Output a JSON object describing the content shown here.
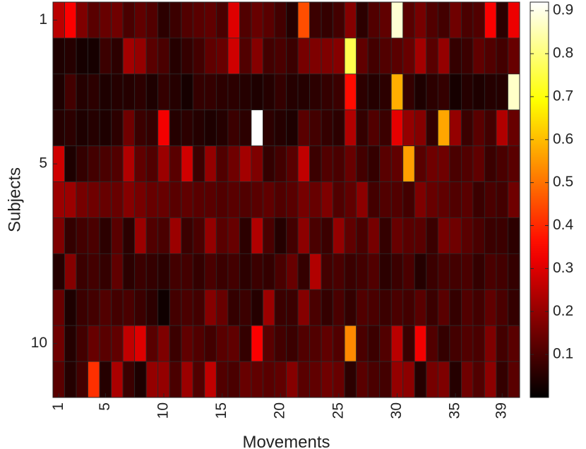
{
  "chart_data": {
    "type": "heatmap",
    "title": "",
    "xlabel": "Movements",
    "ylabel": "Subjects",
    "x_tick_values": [
      1,
      5,
      10,
      15,
      20,
      25,
      30,
      35,
      39
    ],
    "y_tick_values": [
      1,
      5,
      10
    ],
    "x_range": [
      1,
      40
    ],
    "y_range": [
      1,
      11
    ],
    "colormap": "hot",
    "color_range": [
      0,
      0.92
    ],
    "colorbar_ticks": [
      0.1,
      0.2,
      0.3,
      0.4,
      0.5,
      0.6,
      0.7,
      0.8,
      0.9
    ],
    "grid": true,
    "values": [
      [
        0.25,
        0.34,
        0.17,
        0.12,
        0.14,
        0.15,
        0.1,
        0.13,
        0.11,
        0.06,
        0.08,
        0.11,
        0.12,
        0.13,
        0.1,
        0.3,
        0.11,
        0.14,
        0.12,
        0.09,
        0.05,
        0.45,
        0.08,
        0.07,
        0.09,
        0.18,
        0.06,
        0.11,
        0.13,
        0.88,
        0.12,
        0.16,
        0.11,
        0.09,
        0.15,
        0.1,
        0.11,
        0.34,
        0.06,
        0.32
      ],
      [
        0.04,
        0.05,
        0.03,
        0.03,
        0.08,
        0.06,
        0.22,
        0.2,
        0.12,
        0.1,
        0.05,
        0.07,
        0.09,
        0.13,
        0.14,
        0.28,
        0.11,
        0.18,
        0.09,
        0.1,
        0.08,
        0.16,
        0.17,
        0.17,
        0.18,
        0.76,
        0.13,
        0.09,
        0.11,
        0.12,
        0.14,
        0.22,
        0.12,
        0.2,
        0.07,
        0.08,
        0.13,
        0.11,
        0.09,
        0.14
      ],
      [
        0.04,
        0.09,
        0.05,
        0.06,
        0.04,
        0.05,
        0.05,
        0.06,
        0.04,
        0.07,
        0.05,
        0.03,
        0.07,
        0.07,
        0.06,
        0.06,
        0.05,
        0.04,
        0.05,
        0.07,
        0.05,
        0.05,
        0.06,
        0.07,
        0.08,
        0.36,
        0.06,
        0.05,
        0.06,
        0.58,
        0.07,
        0.04,
        0.06,
        0.07,
        0.03,
        0.05,
        0.04,
        0.05,
        0.05,
        0.87
      ],
      [
        0.05,
        0.06,
        0.04,
        0.05,
        0.04,
        0.06,
        0.15,
        0.08,
        0.07,
        0.33,
        0.05,
        0.06,
        0.05,
        0.04,
        0.05,
        0.08,
        0.06,
        0.92,
        0.06,
        0.05,
        0.04,
        0.12,
        0.09,
        0.07,
        0.06,
        0.24,
        0.07,
        0.11,
        0.08,
        0.31,
        0.2,
        0.18,
        0.07,
        0.57,
        0.2,
        0.08,
        0.12,
        0.09,
        0.24,
        0.14
      ],
      [
        0.28,
        0.04,
        0.07,
        0.09,
        0.1,
        0.11,
        0.24,
        0.13,
        0.11,
        0.21,
        0.12,
        0.28,
        0.08,
        0.2,
        0.11,
        0.15,
        0.22,
        0.17,
        0.07,
        0.09,
        0.12,
        0.26,
        0.08,
        0.11,
        0.1,
        0.14,
        0.09,
        0.07,
        0.12,
        0.13,
        0.56,
        0.12,
        0.15,
        0.15,
        0.1,
        0.11,
        0.13,
        0.08,
        0.1,
        0.12
      ],
      [
        0.21,
        0.21,
        0.16,
        0.15,
        0.14,
        0.14,
        0.18,
        0.16,
        0.14,
        0.14,
        0.12,
        0.13,
        0.12,
        0.12,
        0.11,
        0.12,
        0.11,
        0.12,
        0.13,
        0.11,
        0.12,
        0.16,
        0.14,
        0.17,
        0.11,
        0.13,
        0.19,
        0.09,
        0.11,
        0.11,
        0.09,
        0.17,
        0.14,
        0.13,
        0.11,
        0.12,
        0.08,
        0.1,
        0.09,
        0.15
      ],
      [
        0.17,
        0.07,
        0.09,
        0.1,
        0.06,
        0.12,
        0.06,
        0.21,
        0.11,
        0.1,
        0.21,
        0.08,
        0.1,
        0.2,
        0.12,
        0.14,
        0.06,
        0.24,
        0.1,
        0.05,
        0.09,
        0.19,
        0.1,
        0.08,
        0.2,
        0.13,
        0.1,
        0.16,
        0.07,
        0.14,
        0.12,
        0.12,
        0.08,
        0.16,
        0.15,
        0.12,
        0.1,
        0.08,
        0.08,
        0.06
      ],
      [
        0.05,
        0.18,
        0.08,
        0.09,
        0.07,
        0.13,
        0.06,
        0.08,
        0.07,
        0.06,
        0.09,
        0.09,
        0.07,
        0.1,
        0.08,
        0.09,
        0.06,
        0.08,
        0.07,
        0.1,
        0.14,
        0.07,
        0.24,
        0.09,
        0.1,
        0.08,
        0.09,
        0.11,
        0.06,
        0.08,
        0.1,
        0.05,
        0.08,
        0.1,
        0.09,
        0.1,
        0.07,
        0.1,
        0.09,
        0.07
      ],
      [
        0.14,
        0.04,
        0.08,
        0.09,
        0.11,
        0.09,
        0.1,
        0.08,
        0.06,
        0.02,
        0.09,
        0.1,
        0.09,
        0.18,
        0.14,
        0.07,
        0.08,
        0.05,
        0.21,
        0.08,
        0.08,
        0.18,
        0.1,
        0.07,
        0.1,
        0.07,
        0.11,
        0.1,
        0.08,
        0.1,
        0.09,
        0.12,
        0.08,
        0.12,
        0.07,
        0.11,
        0.09,
        0.13,
        0.1,
        0.07
      ],
      [
        0.15,
        0.05,
        0.09,
        0.14,
        0.12,
        0.13,
        0.26,
        0.3,
        0.12,
        0.17,
        0.08,
        0.13,
        0.11,
        0.09,
        0.12,
        0.13,
        0.07,
        0.34,
        0.12,
        0.09,
        0.08,
        0.11,
        0.11,
        0.13,
        0.11,
        0.53,
        0.1,
        0.08,
        0.11,
        0.25,
        0.08,
        0.33,
        0.11,
        0.07,
        0.09,
        0.11,
        0.1,
        0.17,
        0.09,
        0.12
      ],
      [
        0.12,
        0.05,
        0.09,
        0.41,
        0.05,
        0.23,
        0.08,
        0.04,
        0.2,
        0.2,
        0.1,
        0.21,
        0.11,
        0.26,
        0.11,
        0.1,
        0.14,
        0.13,
        0.12,
        0.13,
        0.18,
        0.12,
        0.13,
        0.15,
        0.14,
        0.06,
        0.12,
        0.1,
        0.09,
        0.2,
        0.19,
        0.05,
        0.16,
        0.17,
        0.05,
        0.15,
        0.11,
        0.19,
        0.07,
        0.12
      ]
    ]
  }
}
